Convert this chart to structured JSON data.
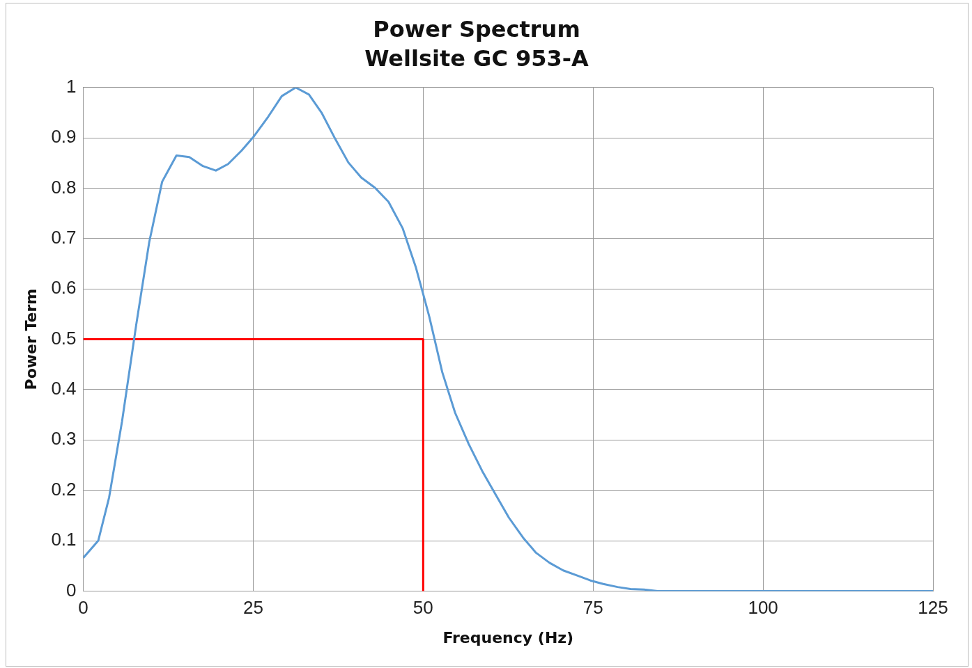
{
  "chart_data": {
    "type": "line",
    "title": "Power Spectrum",
    "subtitle": "Wellsite GC 953-A",
    "xlabel": "Frequency (Hz)",
    "ylabel": "Power Term",
    "xlim": [
      0,
      125
    ],
    "xticks": [
      0,
      25,
      50,
      75,
      100,
      125
    ],
    "ylim": [
      0,
      1
    ],
    "yticks": [
      0,
      0.1,
      0.2,
      0.3,
      0.4,
      0.5,
      0.6,
      0.7,
      0.8,
      0.9,
      1
    ],
    "grid": true,
    "legend": false,
    "marker": "none",
    "line_style": "solid",
    "series": [
      {
        "color": "#5b9bd5",
        "x": [
          0,
          2.2,
          3.8,
          5.7,
          7.8,
          9.7,
          11.6,
          13.7,
          15.6,
          17.6,
          19.5,
          21.3,
          23.3,
          25.1,
          27.2,
          29.2,
          31.25,
          33.2,
          35.1,
          37.1,
          39,
          40.9,
          42.9,
          44.9,
          47,
          48.9,
          50.1,
          50.9,
          52.8,
          54.7,
          56.7,
          58.7,
          60.6,
          62.6,
          64.7,
          66.6,
          68.6,
          70.6,
          72.6,
          74.6,
          76.5,
          78.6,
          80.5,
          82.5,
          84.5,
          100,
          125
        ],
        "values": [
          0.066,
          0.1,
          0.186,
          0.337,
          0.53,
          0.693,
          0.813,
          0.865,
          0.862,
          0.844,
          0.835,
          0.848,
          0.875,
          0.903,
          0.942,
          0.983,
          1,
          0.986,
          0.949,
          0.897,
          0.851,
          0.821,
          0.801,
          0.773,
          0.72,
          0.644,
          0.585,
          0.545,
          0.435,
          0.354,
          0.292,
          0.238,
          0.193,
          0.146,
          0.106,
          0.076,
          0.056,
          0.041,
          0.031,
          0.021,
          0.014,
          0.008,
          0.004,
          0.003,
          0,
          0,
          0
        ]
      },
      {
        "color": "#ff0000",
        "x": [
          0,
          50,
          50
        ],
        "values": [
          0.5,
          0.5,
          0
        ]
      }
    ]
  }
}
